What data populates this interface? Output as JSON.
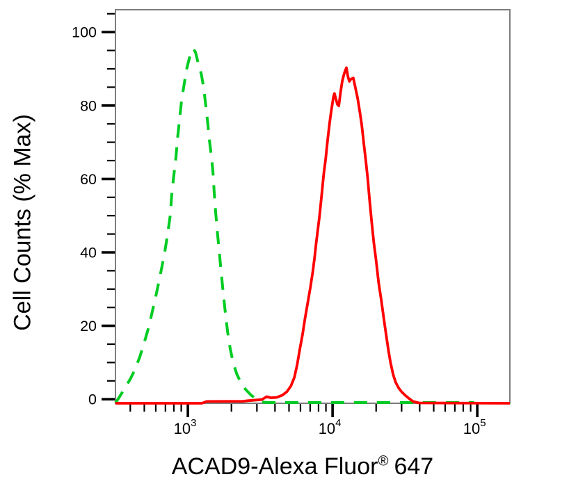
{
  "figure": {
    "background": "#ffffff",
    "frame_color": "#7d7d7d",
    "tick_color": "#000000",
    "x_label_main": "ACAD9-Alexa Fluor",
    "x_label_reg": "®",
    "x_label_num": "647",
    "y_label": "Cell Counts (% Max)"
  },
  "chart_data": {
    "type": "line",
    "subtype": "flow-cytometry-histogram-overlay",
    "title": "",
    "xlabel": "ACAD9-Alexa Fluor® 647",
    "ylabel": "Cell Counts (% Max)",
    "x_scale": "log10",
    "xlim": [
      316,
      168000
    ],
    "ylim": [
      -1.1,
      106.1
    ],
    "grid": false,
    "legend_position": "none",
    "x_major_ticks": [
      {
        "value": 1000,
        "base": "10",
        "exp": "3"
      },
      {
        "value": 10000,
        "base": "10",
        "exp": "4"
      },
      {
        "value": 100000,
        "base": "10",
        "exp": "5"
      }
    ],
    "x_minor_ticks": [
      400,
      500,
      600,
      700,
      800,
      900,
      2000,
      3000,
      4000,
      5000,
      6000,
      7000,
      8000,
      9000,
      20000,
      30000,
      40000,
      50000,
      60000,
      70000,
      80000,
      90000
    ],
    "y_major_ticks": [
      {
        "value": 0,
        "label": "0"
      },
      {
        "value": 20,
        "label": "20"
      },
      {
        "value": 40,
        "label": "40"
      },
      {
        "value": 60,
        "label": "60"
      },
      {
        "value": 80,
        "label": "80"
      },
      {
        "value": 100,
        "label": "100"
      }
    ],
    "y_minor_ticks": [
      5,
      10,
      15,
      25,
      30,
      35,
      45,
      50,
      55,
      65,
      70,
      75,
      85,
      90,
      95,
      105
    ],
    "series": [
      {
        "name": "green-dashed",
        "color": "#00cc22",
        "line_style": "dashed",
        "line_width": 4,
        "peak": {
          "x": 1090,
          "y": 95.5
        },
        "points": [
          [
            316,
            -1
          ],
          [
            335,
            0.5
          ],
          [
            360,
            2.5
          ],
          [
            400,
            5.5
          ],
          [
            430,
            8
          ],
          [
            465,
            11.5
          ],
          [
            500,
            15.5
          ],
          [
            535,
            19.5
          ],
          [
            565,
            23.5
          ],
          [
            600,
            28
          ],
          [
            635,
            32.5
          ],
          [
            665,
            36.5
          ],
          [
            695,
            40.5
          ],
          [
            725,
            45
          ],
          [
            755,
            50
          ],
          [
            775,
            56
          ],
          [
            800,
            61
          ],
          [
            828,
            66
          ],
          [
            848,
            71
          ],
          [
            875,
            76
          ],
          [
            905,
            81.5
          ],
          [
            940,
            85.5
          ],
          [
            975,
            89.5
          ],
          [
            1010,
            92
          ],
          [
            1050,
            94.5
          ],
          [
            1090,
            95.5
          ],
          [
            1130,
            94.5
          ],
          [
            1180,
            91.5
          ],
          [
            1240,
            88.5
          ],
          [
            1290,
            84.5
          ],
          [
            1330,
            80
          ],
          [
            1370,
            75.5
          ],
          [
            1410,
            70.5
          ],
          [
            1455,
            66
          ],
          [
            1490,
            62
          ],
          [
            1520,
            56.5
          ],
          [
            1555,
            51
          ],
          [
            1600,
            45.5
          ],
          [
            1650,
            40
          ],
          [
            1700,
            34.5
          ],
          [
            1755,
            29
          ],
          [
            1810,
            24
          ],
          [
            1880,
            18.5
          ],
          [
            1960,
            13.8
          ],
          [
            2060,
            9.8
          ],
          [
            2180,
            6.8
          ],
          [
            2320,
            4.6
          ],
          [
            2500,
            2.7
          ],
          [
            2720,
            1.2
          ],
          [
            2950,
            0.1
          ],
          [
            3200,
            -0.7
          ],
          [
            3500,
            -0.9
          ],
          [
            95000,
            -0.9
          ]
        ]
      },
      {
        "name": "red-solid",
        "color": "#ff0000",
        "line_style": "solid",
        "line_width": 3.8,
        "peak": {
          "x": 12470,
          "y": 90.3
        },
        "points": [
          [
            316,
            -1.1
          ],
          [
            1250,
            -1.1
          ],
          [
            1350,
            -0.6
          ],
          [
            2400,
            -0.55
          ],
          [
            2600,
            -0.4
          ],
          [
            3250,
            -0.1
          ],
          [
            3500,
            0.7
          ],
          [
            3750,
            0.4
          ],
          [
            4100,
            0.5
          ],
          [
            4500,
            1.1
          ],
          [
            4850,
            2.1
          ],
          [
            5150,
            3.6
          ],
          [
            5450,
            6
          ],
          [
            5700,
            9.5
          ],
          [
            5950,
            13.8
          ],
          [
            6200,
            17.6
          ],
          [
            6450,
            22
          ],
          [
            6750,
            26.5
          ],
          [
            7050,
            30.8
          ],
          [
            7300,
            34.8
          ],
          [
            7520,
            38.8
          ],
          [
            7700,
            42.5
          ],
          [
            7900,
            46
          ],
          [
            8100,
            49.5
          ],
          [
            8300,
            53.5
          ],
          [
            8500,
            57.5
          ],
          [
            8700,
            61.5
          ],
          [
            8950,
            65.3
          ],
          [
            9150,
            69
          ],
          [
            9350,
            72.3
          ],
          [
            9550,
            75.3
          ],
          [
            9750,
            78
          ],
          [
            9950,
            80.3
          ],
          [
            10150,
            82.4
          ],
          [
            10300,
            83.3
          ],
          [
            10550,
            81.8
          ],
          [
            10800,
            80.3
          ],
          [
            11050,
            79.9
          ],
          [
            11350,
            83.5
          ],
          [
            11650,
            86.5
          ],
          [
            11900,
            88
          ],
          [
            12150,
            89.2
          ],
          [
            12470,
            90.3
          ],
          [
            12750,
            88
          ],
          [
            13050,
            86.6
          ],
          [
            13400,
            87.2
          ],
          [
            13900,
            87.5
          ],
          [
            14400,
            84.8
          ],
          [
            14900,
            82
          ],
          [
            15400,
            78.5
          ],
          [
            15900,
            74.8
          ],
          [
            16450,
            69.5
          ],
          [
            17000,
            64.8
          ],
          [
            17500,
            60
          ],
          [
            18000,
            54.5
          ],
          [
            18600,
            48.5
          ],
          [
            19300,
            42.5
          ],
          [
            19900,
            38.4
          ],
          [
            20800,
            31.8
          ],
          [
            21700,
            27
          ],
          [
            22700,
            21.4
          ],
          [
            23500,
            17.3
          ],
          [
            24400,
            13
          ],
          [
            25200,
            9.8
          ],
          [
            26200,
            6.8
          ],
          [
            27300,
            4.6
          ],
          [
            28600,
            3.1
          ],
          [
            30000,
            2
          ],
          [
            31500,
            1.2
          ],
          [
            33500,
            0.3
          ],
          [
            36000,
            -0.6
          ],
          [
            39500,
            -1
          ],
          [
            168000,
            -1.1
          ]
        ]
      }
    ]
  }
}
